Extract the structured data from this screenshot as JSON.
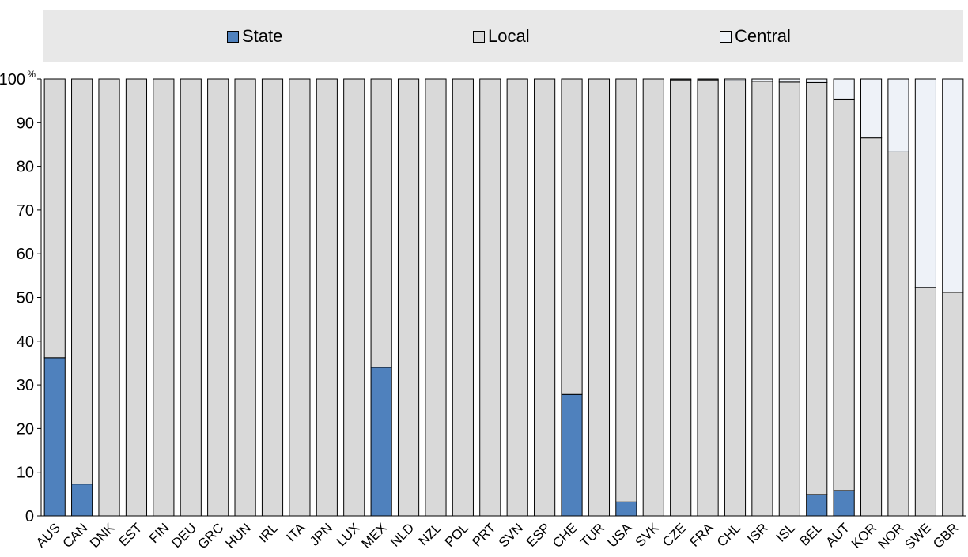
{
  "chart_data": {
    "type": "bar",
    "stacked": true,
    "title": "",
    "xlabel": "",
    "ylabel": "",
    "y_unit": "%",
    "ylim": [
      0,
      100
    ],
    "yticks": [
      0,
      10,
      20,
      30,
      40,
      50,
      60,
      70,
      80,
      90,
      100
    ],
    "grid": false,
    "legend_position": "top",
    "categories": [
      "AUS",
      "CAN",
      "DNK",
      "EST",
      "FIN",
      "DEU",
      "GRC",
      "HUN",
      "IRL",
      "ITA",
      "JPN",
      "LUX",
      "MEX",
      "NLD",
      "NZL",
      "POL",
      "PRT",
      "SVN",
      "ESP",
      "CHE",
      "TUR",
      "USA",
      "SVK",
      "CZE",
      "FRA",
      "CHL",
      "ISR",
      "ISL",
      "BEL",
      "AUT",
      "KOR",
      "NOR",
      "SWE",
      "GBR"
    ],
    "series": [
      {
        "name": "State",
        "color": "#4f81bd",
        "values": [
          36.2,
          7.3,
          0,
          0,
          0,
          0,
          0,
          0,
          0,
          0,
          0,
          0,
          34,
          0,
          0,
          0,
          0,
          0,
          0,
          27.8,
          0,
          3.2,
          0,
          0,
          0,
          0,
          0,
          0,
          4.9,
          5.8,
          0,
          0,
          0,
          0
        ]
      },
      {
        "name": "Local",
        "color": "#d9d9d9",
        "values": [
          63.8,
          92.7,
          100,
          100,
          100,
          100,
          100,
          100,
          100,
          100,
          100,
          100,
          66,
          100,
          100,
          100,
          100,
          100,
          100,
          72.2,
          100,
          96.8,
          100,
          99.8,
          99.8,
          99.6,
          99.5,
          99.3,
          94.3,
          89.6,
          86.5,
          83.3,
          52.3,
          51.2
        ]
      },
      {
        "name": "Central",
        "color": "#eef2f8",
        "values": [
          0,
          0,
          0,
          0,
          0,
          0,
          0,
          0,
          0,
          0,
          0,
          0,
          0,
          0,
          0,
          0,
          0,
          0,
          0,
          0,
          0,
          0,
          0,
          0.2,
          0.2,
          0.4,
          0.5,
          0.7,
          0.8,
          4.6,
          13.5,
          16.7,
          47.7,
          48.8
        ]
      }
    ]
  }
}
